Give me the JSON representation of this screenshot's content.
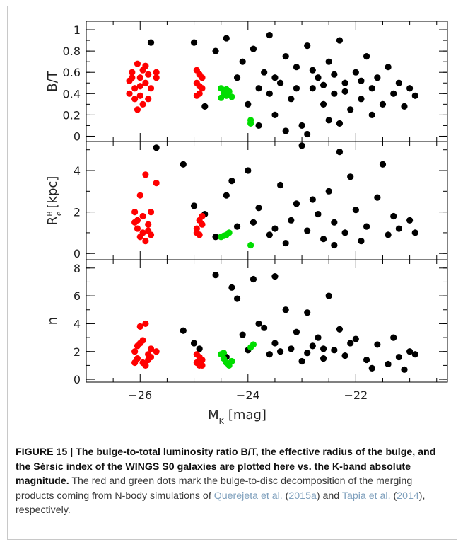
{
  "chart_data": [
    {
      "type": "scatter",
      "panel": "bulge-to-total",
      "ylabel": "B/T",
      "ylim": [
        -0.05,
        1.08
      ],
      "yticks": [
        0,
        0.2,
        0.4,
        0.6,
        0.8,
        1
      ],
      "ytick_labels": [
        "0",
        "0.2",
        "0.4",
        "0.6",
        "0.8",
        "1"
      ],
      "xlim": [
        -27,
        -20.3
      ],
      "series": [
        {
          "color": "#ff0000",
          "points": [
            [
              -26.2,
              0.52
            ],
            [
              -26.15,
              0.6
            ],
            [
              -26.1,
              0.45
            ],
            [
              -26.05,
              0.68
            ],
            [
              -26.0,
              0.38
            ],
            [
              -26.0,
              0.55
            ],
            [
              -25.95,
              0.3
            ],
            [
              -25.9,
              0.5
            ],
            [
              -26.1,
              0.35
            ],
            [
              -26.05,
              0.25
            ],
            [
              -25.95,
              0.62
            ],
            [
              -25.85,
              0.58
            ],
            [
              -25.8,
              0.45
            ],
            [
              -25.9,
              0.66
            ],
            [
              -26.2,
              0.4
            ],
            [
              -25.7,
              0.6
            ],
            [
              -25.7,
              0.55
            ],
            [
              -26.0,
              0.47
            ],
            [
              -25.85,
              0.35
            ],
            [
              -26.15,
              0.55
            ],
            [
              -24.95,
              0.5
            ],
            [
              -24.9,
              0.58
            ],
            [
              -24.9,
              0.4
            ],
            [
              -24.85,
              0.45
            ],
            [
              -24.95,
              0.62
            ],
            [
              -24.85,
              0.55
            ],
            [
              -24.9,
              0.47
            ],
            [
              -24.95,
              0.38
            ]
          ]
        },
        {
          "color": "#00dd00",
          "points": [
            [
              -24.5,
              0.45
            ],
            [
              -24.45,
              0.4
            ],
            [
              -24.4,
              0.38
            ],
            [
              -24.35,
              0.42
            ],
            [
              -24.5,
              0.36
            ],
            [
              -24.4,
              0.44
            ],
            [
              -24.3,
              0.37
            ],
            [
              -23.95,
              0.12
            ],
            [
              -23.95,
              0.15
            ]
          ]
        },
        {
          "color": "#000000",
          "points": [
            [
              -25.8,
              0.88
            ],
            [
              -25.0,
              0.88
            ],
            [
              -24.8,
              0.28
            ],
            [
              -24.6,
              0.8
            ],
            [
              -24.4,
              0.92
            ],
            [
              -24.2,
              0.55
            ],
            [
              -24.1,
              0.7
            ],
            [
              -24.0,
              0.3
            ],
            [
              -23.9,
              0.82
            ],
            [
              -23.8,
              0.45
            ],
            [
              -23.7,
              0.6
            ],
            [
              -23.6,
              0.95
            ],
            [
              -23.5,
              0.2
            ],
            [
              -23.4,
              0.5
            ],
            [
              -23.3,
              0.75
            ],
            [
              -23.2,
              0.35
            ],
            [
              -23.1,
              0.65
            ],
            [
              -23.0,
              0.1
            ],
            [
              -22.9,
              0.85
            ],
            [
              -22.8,
              0.45
            ],
            [
              -22.7,
              0.55
            ],
            [
              -22.6,
              0.3
            ],
            [
              -22.5,
              0.7
            ],
            [
              -22.4,
              0.4
            ],
            [
              -22.3,
              0.9
            ],
            [
              -22.2,
              0.5
            ],
            [
              -22.1,
              0.25
            ],
            [
              -22.0,
              0.6
            ],
            [
              -21.9,
              0.35
            ],
            [
              -21.8,
              0.75
            ],
            [
              -21.7,
              0.45
            ],
            [
              -21.6,
              0.55
            ],
            [
              -21.5,
              0.3
            ],
            [
              -21.4,
              0.65
            ],
            [
              -21.3,
              0.4
            ],
            [
              -21.2,
              0.5
            ],
            [
              -21.1,
              0.28
            ],
            [
              -21.0,
              0.45
            ],
            [
              -20.9,
              0.38
            ],
            [
              -22.5,
              0.15
            ],
            [
              -23.3,
              0.05
            ],
            [
              -22.9,
              0.02
            ],
            [
              -22.3,
              0.12
            ],
            [
              -21.7,
              0.2
            ],
            [
              -23.8,
              0.1
            ],
            [
              -23.5,
              0.55
            ],
            [
              -22.8,
              0.62
            ],
            [
              -22.4,
              0.58
            ],
            [
              -23.1,
              0.45
            ],
            [
              -22.6,
              0.48
            ],
            [
              -21.9,
              0.52
            ],
            [
              -23.6,
              0.4
            ],
            [
              -22.2,
              0.42
            ]
          ]
        }
      ]
    },
    {
      "type": "scatter",
      "panel": "effective-radius",
      "ylabel": "R_e^B [kpc]",
      "ylim": [
        -0.3,
        5.4
      ],
      "yticks": [
        0,
        2,
        4
      ],
      "ytick_labels": [
        "0",
        "2",
        "4"
      ],
      "xlim": [
        -27,
        -20.3
      ],
      "series": [
        {
          "color": "#ff0000",
          "points": [
            [
              -26.1,
              1.5
            ],
            [
              -26.05,
              1.2
            ],
            [
              -26.0,
              2.8
            ],
            [
              -25.95,
              1.0
            ],
            [
              -26.0,
              0.8
            ],
            [
              -25.9,
              3.8
            ],
            [
              -25.85,
              1.4
            ],
            [
              -25.9,
              0.6
            ],
            [
              -25.8,
              2.0
            ],
            [
              -25.7,
              3.4
            ],
            [
              -26.1,
              2.0
            ],
            [
              -25.95,
              1.8
            ],
            [
              -25.85,
              1.1
            ],
            [
              -26.05,
              1.6
            ],
            [
              -25.8,
              0.9
            ],
            [
              -24.95,
              1.2
            ],
            [
              -24.9,
              1.6
            ],
            [
              -24.9,
              0.9
            ],
            [
              -24.85,
              1.4
            ],
            [
              -24.95,
              1.0
            ],
            [
              -24.85,
              1.8
            ]
          ]
        },
        {
          "color": "#00dd00",
          "points": [
            [
              -24.5,
              0.8
            ],
            [
              -24.4,
              0.9
            ],
            [
              -24.35,
              1.0
            ],
            [
              -24.45,
              0.85
            ],
            [
              -23.95,
              0.4
            ]
          ]
        },
        {
          "color": "#000000",
          "points": [
            [
              -25.7,
              5.1
            ],
            [
              -25.2,
              4.3
            ],
            [
              -25.0,
              2.3
            ],
            [
              -24.8,
              1.9
            ],
            [
              -24.6,
              0.8
            ],
            [
              -24.4,
              2.8
            ],
            [
              -24.2,
              1.3
            ],
            [
              -24.0,
              4.0
            ],
            [
              -23.8,
              2.2
            ],
            [
              -23.6,
              0.9
            ],
            [
              -23.4,
              3.3
            ],
            [
              -23.2,
              1.6
            ],
            [
              -23.0,
              5.2
            ],
            [
              -22.9,
              1.1
            ],
            [
              -22.8,
              2.6
            ],
            [
              -22.6,
              0.7
            ],
            [
              -22.5,
              3.0
            ],
            [
              -22.4,
              1.5
            ],
            [
              -22.3,
              4.9
            ],
            [
              -22.2,
              1.0
            ],
            [
              -22.0,
              2.1
            ],
            [
              -21.8,
              1.3
            ],
            [
              -21.6,
              2.7
            ],
            [
              -21.4,
              0.9
            ],
            [
              -21.3,
              1.8
            ],
            [
              -21.2,
              1.2
            ],
            [
              -21.0,
              1.6
            ],
            [
              -20.9,
              1.0
            ],
            [
              -22.7,
              1.9
            ],
            [
              -23.5,
              1.2
            ],
            [
              -23.1,
              2.4
            ],
            [
              -21.9,
              0.6
            ],
            [
              -21.5,
              4.3
            ],
            [
              -22.1,
              3.7
            ],
            [
              -23.3,
              0.5
            ],
            [
              -22.4,
              0.4
            ],
            [
              -23.9,
              1.5
            ],
            [
              -24.3,
              3.5
            ]
          ]
        }
      ]
    },
    {
      "type": "scatter",
      "panel": "sersic-index",
      "ylabel": "n",
      "ylim": [
        -0.2,
        8.6
      ],
      "yticks": [
        0,
        2,
        4,
        6,
        8
      ],
      "ytick_labels": [
        "0",
        "2",
        "4",
        "6",
        "8"
      ],
      "xlim": [
        -27,
        -20.3
      ],
      "xticks": [
        -26,
        -24,
        -22
      ],
      "xtick_labels": [
        "−26",
        "−24",
        "−22"
      ],
      "xlabel": "M_K [mag]",
      "series": [
        {
          "color": "#ff0000",
          "points": [
            [
              -26.1,
              2.0
            ],
            [
              -26.05,
              1.5
            ],
            [
              -26.0,
              3.8
            ],
            [
              -25.95,
              1.2
            ],
            [
              -26.0,
              2.6
            ],
            [
              -25.9,
              4.0
            ],
            [
              -25.85,
              1.8
            ],
            [
              -25.9,
              1.0
            ],
            [
              -25.8,
              2.2
            ],
            [
              -25.7,
              2.0
            ],
            [
              -26.1,
              1.2
            ],
            [
              -25.95,
              2.8
            ],
            [
              -25.85,
              1.4
            ],
            [
              -26.05,
              2.4
            ],
            [
              -25.8,
              1.6
            ],
            [
              -24.95,
              1.2
            ],
            [
              -24.9,
              1.6
            ],
            [
              -24.9,
              1.0
            ],
            [
              -24.85,
              1.4
            ],
            [
              -24.95,
              1.8
            ],
            [
              -24.85,
              1.0
            ]
          ]
        },
        {
          "color": "#00dd00",
          "points": [
            [
              -24.5,
              1.8
            ],
            [
              -24.45,
              1.5
            ],
            [
              -24.4,
              1.2
            ],
            [
              -24.35,
              1.0
            ],
            [
              -24.3,
              1.3
            ],
            [
              -24.45,
              1.9
            ],
            [
              -23.95,
              2.3
            ],
            [
              -23.9,
              2.5
            ]
          ]
        },
        {
          "color": "#000000",
          "points": [
            [
              -25.2,
              3.5
            ],
            [
              -25.0,
              2.6
            ],
            [
              -24.9,
              2.2
            ],
            [
              -24.6,
              7.5
            ],
            [
              -24.4,
              1.6
            ],
            [
              -24.2,
              5.8
            ],
            [
              -24.1,
              3.2
            ],
            [
              -24.0,
              2.1
            ],
            [
              -23.9,
              7.2
            ],
            [
              -23.8,
              4.0
            ],
            [
              -23.6,
              1.8
            ],
            [
              -23.5,
              2.6
            ],
            [
              -23.3,
              5.0
            ],
            [
              -23.2,
              2.2
            ],
            [
              -23.1,
              3.4
            ],
            [
              -23.0,
              1.3
            ],
            [
              -22.9,
              4.8
            ],
            [
              -22.8,
              2.4
            ],
            [
              -22.7,
              3.0
            ],
            [
              -22.6,
              1.5
            ],
            [
              -22.5,
              6.0
            ],
            [
              -22.4,
              2.1
            ],
            [
              -22.3,
              3.6
            ],
            [
              -22.2,
              1.7
            ],
            [
              -22.0,
              2.9
            ],
            [
              -21.8,
              1.4
            ],
            [
              -21.6,
              2.5
            ],
            [
              -21.4,
              1.1
            ],
            [
              -21.3,
              3.0
            ],
            [
              -21.2,
              1.6
            ],
            [
              -21.0,
              2.0
            ],
            [
              -20.9,
              1.8
            ],
            [
              -22.6,
              2.2
            ],
            [
              -22.1,
              2.6
            ],
            [
              -23.4,
              2.0
            ],
            [
              -21.7,
              0.8
            ],
            [
              -21.1,
              0.7
            ],
            [
              -22.9,
              1.9
            ],
            [
              -23.7,
              3.7
            ],
            [
              -24.3,
              6.6
            ],
            [
              -23.5,
              7.4
            ]
          ]
        }
      ]
    }
  ],
  "caption": {
    "bold": "FIGURE 15 | The bulge-to-total luminosity ratio B/T, the effective radius of the bulge, and the Sérsic index of the WINGS S0 galaxies are plotted here vs. the K-band absolute magnitude.",
    "text_1": " The red and green dots mark the bulge-to-disc decomposition of the merging products coming from N-body simulations of ",
    "cite_1": "Querejeta et al.",
    "text_2": " (",
    "cite_2": "2015a",
    "text_3": ") and ",
    "cite_3": "Tapia et al.",
    "text_4": " (",
    "cite_4": "2014",
    "text_5": "), respectively."
  }
}
